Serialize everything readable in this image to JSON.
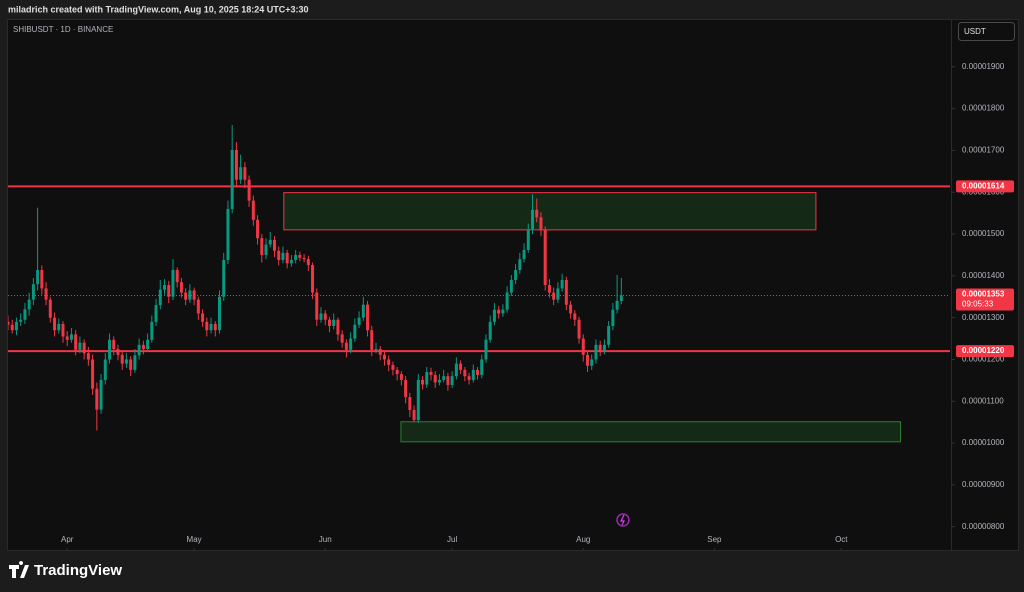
{
  "chart_data": {
    "type": "candlestick",
    "caption": "miladrich created with TradingView.com, Aug 10, 2025 18:24 UTC+3:30",
    "title": "SHIBUSDT · 1D · BINANCE",
    "currency": "USDT",
    "brand": "TradingView",
    "up_color": "#089981",
    "down_color": "#f23645",
    "grid": false,
    "xlim": [
      0,
      222.7
    ],
    "ylim": [
      7.49e-06,
      2.012e-05
    ],
    "xticks": [
      {
        "value": 14,
        "label": "Apr"
      },
      {
        "value": 44,
        "label": "May"
      },
      {
        "value": 75,
        "label": "Jun"
      },
      {
        "value": 105,
        "label": "Jul"
      },
      {
        "value": 136,
        "label": "Aug"
      },
      {
        "value": 167,
        "label": "Sep"
      },
      {
        "value": 197,
        "label": "Oct"
      }
    ],
    "yticks": [
      {
        "value": 8e-06,
        "label": "0.00000800"
      },
      {
        "value": 9e-06,
        "label": "0.00000900"
      },
      {
        "value": 1e-05,
        "label": "0.00001000"
      },
      {
        "value": 1.1e-05,
        "label": "0.00001100"
      },
      {
        "value": 1.2e-05,
        "label": "0.00001200"
      },
      {
        "value": 1.3e-05,
        "label": "0.00001300"
      },
      {
        "value": 1.4e-05,
        "label": "0.00001400"
      },
      {
        "value": 1.5e-05,
        "label": "0.00001500"
      },
      {
        "value": 1.6e-05,
        "label": "0.00001600"
      },
      {
        "value": 1.7e-05,
        "label": "0.00001700"
      },
      {
        "value": 1.8e-05,
        "label": "0.00001800"
      },
      {
        "value": 1.9e-05,
        "label": "0.00001900"
      }
    ],
    "levels": [
      {
        "value": 1.614e-05,
        "label": "0.00001614",
        "color": "#f23645"
      },
      {
        "value": 1.22e-05,
        "label": "0.00001220",
        "color": "#f23645"
      }
    ],
    "last_price": {
      "value": 1.353e-05,
      "label": "0.00001353",
      "countdown": "09:05:33",
      "color": "#f23645"
    },
    "zones": [
      {
        "x": [
          65.2,
          191
        ],
        "y": [
          1.51e-05,
          1.599e-05
        ],
        "fill": "#142a17",
        "border": "#f23645"
      },
      {
        "x": [
          92.9,
          211
        ],
        "y": [
          1.003e-05,
          1.051e-05
        ],
        "fill": "#142a17",
        "border": "#2e7d32"
      }
    ],
    "ohlc": [
      [
        1.29e-05,
        1.305e-05,
        1.27e-05,
        1.283e-05
      ],
      [
        1.283e-05,
        1.295e-05,
        1.262e-05,
        1.27e-05
      ],
      [
        1.27e-05,
        1.3e-05,
        1.258e-05,
        1.29e-05
      ],
      [
        1.29e-05,
        1.31e-05,
        1.28e-05,
        1.295e-05
      ],
      [
        1.295e-05,
        1.335e-05,
        1.285e-05,
        1.32e-05
      ],
      [
        1.32e-05,
        1.36e-05,
        1.305e-05,
        1.343e-05
      ],
      [
        1.343e-05,
        1.395e-05,
        1.33e-05,
        1.38e-05
      ],
      [
        1.38e-05,
        1.563e-05,
        1.365e-05,
        1.414e-05
      ],
      [
        1.414e-05,
        1.425e-05,
        1.355e-05,
        1.37e-05
      ],
      [
        1.37e-05,
        1.385e-05,
        1.33e-05,
        1.343e-05
      ],
      [
        1.343e-05,
        1.35e-05,
        1.288e-05,
        1.3e-05
      ],
      [
        1.3e-05,
        1.312e-05,
        1.255e-05,
        1.27e-05
      ],
      [
        1.27e-05,
        1.298e-05,
        1.262e-05,
        1.285e-05
      ],
      [
        1.285e-05,
        1.292e-05,
        1.24e-05,
        1.255e-05
      ],
      [
        1.255e-05,
        1.268e-05,
        1.232e-05,
        1.247e-05
      ],
      [
        1.247e-05,
        1.275e-05,
        1.24e-05,
        1.26e-05
      ],
      [
        1.26e-05,
        1.27e-05,
        1.21e-05,
        1.223e-05
      ],
      [
        1.223e-05,
        1.255e-05,
        1.215e-05,
        1.24e-05
      ],
      [
        1.24e-05,
        1.248e-05,
        1.2e-05,
        1.215e-05
      ],
      [
        1.215e-05,
        1.23e-05,
        1.185e-05,
        1.2e-05
      ],
      [
        1.2e-05,
        1.212e-05,
        1.115e-05,
        1.13e-05
      ],
      [
        1.13e-05,
        1.145e-05,
        1.03e-05,
        1.08e-05
      ],
      [
        1.08e-05,
        1.165e-05,
        1.07e-05,
        1.151e-05
      ],
      [
        1.151e-05,
        1.215e-05,
        1.14e-05,
        1.2e-05
      ],
      [
        1.2e-05,
        1.262e-05,
        1.19e-05,
        1.247e-05
      ],
      [
        1.247e-05,
        1.255e-05,
        1.21e-05,
        1.225e-05
      ],
      [
        1.225e-05,
        1.235e-05,
        1.198e-05,
        1.211e-05
      ],
      [
        1.211e-05,
        1.22e-05,
        1.175e-05,
        1.19e-05
      ],
      [
        1.19e-05,
        1.215e-05,
        1.18e-05,
        1.2e-05
      ],
      [
        1.2e-05,
        1.208e-05,
        1.16e-05,
        1.175e-05
      ],
      [
        1.175e-05,
        1.225e-05,
        1.168e-05,
        1.21e-05
      ],
      [
        1.21e-05,
        1.25e-05,
        1.2e-05,
        1.235e-05
      ],
      [
        1.235e-05,
        1.245e-05,
        1.212e-05,
        1.225e-05
      ],
      [
        1.225e-05,
        1.262e-05,
        1.218e-05,
        1.247e-05
      ],
      [
        1.247e-05,
        1.305e-05,
        1.24e-05,
        1.29e-05
      ],
      [
        1.29e-05,
        1.345e-05,
        1.28e-05,
        1.33e-05
      ],
      [
        1.33e-05,
        1.39e-05,
        1.32e-05,
        1.367e-05
      ],
      [
        1.367e-05,
        1.392e-05,
        1.355e-05,
        1.378e-05
      ],
      [
        1.378e-05,
        1.388e-05,
        1.335e-05,
        1.35e-05
      ],
      [
        1.35e-05,
        1.44e-05,
        1.342e-05,
        1.414e-05
      ],
      [
        1.414e-05,
        1.42e-05,
        1.372e-05,
        1.385e-05
      ],
      [
        1.385e-05,
        1.395e-05,
        1.348e-05,
        1.36e-05
      ],
      [
        1.36e-05,
        1.37e-05,
        1.33e-05,
        1.343e-05
      ],
      [
        1.343e-05,
        1.38e-05,
        1.335e-05,
        1.365e-05
      ],
      [
        1.365e-05,
        1.372e-05,
        1.33e-05,
        1.343e-05
      ],
      [
        1.343e-05,
        1.35e-05,
        1.295e-05,
        1.31e-05
      ],
      [
        1.31e-05,
        1.32e-05,
        1.278e-05,
        1.29e-05
      ],
      [
        1.29e-05,
        1.3e-05,
        1.255e-05,
        1.27e-05
      ],
      [
        1.27e-05,
        1.3e-05,
        1.262e-05,
        1.285e-05
      ],
      [
        1.285e-05,
        1.292e-05,
        1.255e-05,
        1.27e-05
      ],
      [
        1.27e-05,
        1.365e-05,
        1.262e-05,
        1.35e-05
      ],
      [
        1.35e-05,
        1.455e-05,
        1.34e-05,
        1.438e-05
      ],
      [
        1.438e-05,
        1.58e-05,
        1.428e-05,
        1.56e-05
      ],
      [
        1.56e-05,
        1.761e-05,
        1.55e-05,
        1.701e-05
      ],
      [
        1.701e-05,
        1.72e-05,
        1.615e-05,
        1.63e-05
      ],
      [
        1.63e-05,
        1.69e-05,
        1.62e-05,
        1.66e-05
      ],
      [
        1.66e-05,
        1.672e-05,
        1.61e-05,
        1.63e-05
      ],
      [
        1.63e-05,
        1.64e-05,
        1.565e-05,
        1.58e-05
      ],
      [
        1.58e-05,
        1.592e-05,
        1.52e-05,
        1.534e-05
      ],
      [
        1.534e-05,
        1.545e-05,
        1.475e-05,
        1.49e-05
      ],
      [
        1.49e-05,
        1.5e-05,
        1.432e-05,
        1.45e-05
      ],
      [
        1.45e-05,
        1.49e-05,
        1.44e-05,
        1.475e-05
      ],
      [
        1.475e-05,
        1.505e-05,
        1.468e-05,
        1.486e-05
      ],
      [
        1.486e-05,
        1.495e-05,
        1.445e-05,
        1.46e-05
      ],
      [
        1.46e-05,
        1.47e-05,
        1.425e-05,
        1.438e-05
      ],
      [
        1.438e-05,
        1.47e-05,
        1.43e-05,
        1.455e-05
      ],
      [
        1.455e-05,
        1.462e-05,
        1.418e-05,
        1.43e-05
      ],
      [
        1.43e-05,
        1.45e-05,
        1.422e-05,
        1.438e-05
      ],
      [
        1.438e-05,
        1.462e-05,
        1.43e-05,
        1.45e-05
      ],
      [
        1.45e-05,
        1.458e-05,
        1.435e-05,
        1.443e-05
      ],
      [
        1.443e-05,
        1.452e-05,
        1.432e-05,
        1.44e-05
      ],
      [
        1.44e-05,
        1.448e-05,
        1.412e-05,
        1.426e-05
      ],
      [
        1.426e-05,
        1.432e-05,
        1.345e-05,
        1.36e-05
      ],
      [
        1.36e-05,
        1.37e-05,
        1.28e-05,
        1.295e-05
      ],
      [
        1.295e-05,
        1.325e-05,
        1.288e-05,
        1.31e-05
      ],
      [
        1.31e-05,
        1.318e-05,
        1.282e-05,
        1.295e-05
      ],
      [
        1.295e-05,
        1.302e-05,
        1.265e-05,
        1.28e-05
      ],
      [
        1.28e-05,
        1.31e-05,
        1.272e-05,
        1.295e-05
      ],
      [
        1.295e-05,
        1.3e-05,
        1.245e-05,
        1.26e-05
      ],
      [
        1.26e-05,
        1.27e-05,
        1.228e-05,
        1.24e-05
      ],
      [
        1.24e-05,
        1.248e-05,
        1.205e-05,
        1.223e-05
      ],
      [
        1.223e-05,
        1.265e-05,
        1.215e-05,
        1.25e-05
      ],
      [
        1.25e-05,
        1.298e-05,
        1.242e-05,
        1.283e-05
      ],
      [
        1.283e-05,
        1.315e-05,
        1.275e-05,
        1.3e-05
      ],
      [
        1.3e-05,
        1.35e-05,
        1.292e-05,
        1.331e-05
      ],
      [
        1.331e-05,
        1.34e-05,
        1.255e-05,
        1.27e-05
      ],
      [
        1.27e-05,
        1.28e-05,
        1.208e-05,
        1.223e-05
      ],
      [
        1.223e-05,
        1.24e-05,
        1.215e-05,
        1.225e-05
      ],
      [
        1.225e-05,
        1.232e-05,
        1.198e-05,
        1.211e-05
      ],
      [
        1.211e-05,
        1.218e-05,
        1.185e-05,
        1.2e-05
      ],
      [
        1.2e-05,
        1.21e-05,
        1.172e-05,
        1.187e-05
      ],
      [
        1.187e-05,
        1.195e-05,
        1.162e-05,
        1.175e-05
      ],
      [
        1.175e-05,
        1.182e-05,
        1.15e-05,
        1.165e-05
      ],
      [
        1.165e-05,
        1.172e-05,
        1.138e-05,
        1.151e-05
      ],
      [
        1.151e-05,
        1.16e-05,
        1.095e-05,
        1.11e-05
      ],
      [
        1.11e-05,
        1.12e-05,
        1.062e-05,
        1.079e-05
      ],
      [
        1.079e-05,
        1.09e-05,
        1.05e-05,
        1.055e-05
      ],
      [
        1.055e-05,
        1.165e-05,
        1.048e-05,
        1.151e-05
      ],
      [
        1.151e-05,
        1.16e-05,
        1.128e-05,
        1.14e-05
      ],
      [
        1.14e-05,
        1.182e-05,
        1.132e-05,
        1.17e-05
      ],
      [
        1.17e-05,
        1.18e-05,
        1.15e-05,
        1.163e-05
      ],
      [
        1.163e-05,
        1.172e-05,
        1.132e-05,
        1.145e-05
      ],
      [
        1.145e-05,
        1.165e-05,
        1.138e-05,
        1.151e-05
      ],
      [
        1.151e-05,
        1.175e-05,
        1.145e-05,
        1.16e-05
      ],
      [
        1.16e-05,
        1.168e-05,
        1.125e-05,
        1.139e-05
      ],
      [
        1.139e-05,
        1.172e-05,
        1.132e-05,
        1.16e-05
      ],
      [
        1.16e-05,
        1.205e-05,
        1.152e-05,
        1.19e-05
      ],
      [
        1.19e-05,
        1.198e-05,
        1.165e-05,
        1.175e-05
      ],
      [
        1.175e-05,
        1.182e-05,
        1.148e-05,
        1.16e-05
      ],
      [
        1.16e-05,
        1.168e-05,
        1.14e-05,
        1.151e-05
      ],
      [
        1.151e-05,
        1.188e-05,
        1.145e-05,
        1.175e-05
      ],
      [
        1.175e-05,
        1.182e-05,
        1.152e-05,
        1.163e-05
      ],
      [
        1.163e-05,
        1.212e-05,
        1.155e-05,
        1.2e-05
      ],
      [
        1.2e-05,
        1.26e-05,
        1.192e-05,
        1.247e-05
      ],
      [
        1.247e-05,
        1.305e-05,
        1.24e-05,
        1.29e-05
      ],
      [
        1.29e-05,
        1.335e-05,
        1.282e-05,
        1.319e-05
      ],
      [
        1.319e-05,
        1.328e-05,
        1.298e-05,
        1.31e-05
      ],
      [
        1.31e-05,
        1.332e-05,
        1.302e-05,
        1.319e-05
      ],
      [
        1.319e-05,
        1.375e-05,
        1.312e-05,
        1.36e-05
      ],
      [
        1.36e-05,
        1.402e-05,
        1.352e-05,
        1.39e-05
      ],
      [
        1.39e-05,
        1.428e-05,
        1.38e-05,
        1.414e-05
      ],
      [
        1.414e-05,
        1.455e-05,
        1.405e-05,
        1.44e-05
      ],
      [
        1.44e-05,
        1.478e-05,
        1.432e-05,
        1.462e-05
      ],
      [
        1.462e-05,
        1.525e-05,
        1.455e-05,
        1.51e-05
      ],
      [
        1.51e-05,
        1.595e-05,
        1.5e-05,
        1.558e-05
      ],
      [
        1.558e-05,
        1.585e-05,
        1.528e-05,
        1.54e-05
      ],
      [
        1.54e-05,
        1.552e-05,
        1.495e-05,
        1.51e-05
      ],
      [
        1.51e-05,
        1.518e-05,
        1.365e-05,
        1.378e-05
      ],
      [
        1.378e-05,
        1.392e-05,
        1.348e-05,
        1.36e-05
      ],
      [
        1.36e-05,
        1.372e-05,
        1.33e-05,
        1.343e-05
      ],
      [
        1.343e-05,
        1.385e-05,
        1.335e-05,
        1.37e-05
      ],
      [
        1.37e-05,
        1.405e-05,
        1.362e-05,
        1.39e-05
      ],
      [
        1.39e-05,
        1.398e-05,
        1.318e-05,
        1.331e-05
      ],
      [
        1.331e-05,
        1.34e-05,
        1.298e-05,
        1.31e-05
      ],
      [
        1.31e-05,
        1.318e-05,
        1.28e-05,
        1.295e-05
      ],
      [
        1.295e-05,
        1.302e-05,
        1.238e-05,
        1.25e-05
      ],
      [
        1.25e-05,
        1.26e-05,
        1.195e-05,
        1.211e-05
      ],
      [
        1.211e-05,
        1.22e-05,
        1.17e-05,
        1.185e-05
      ],
      [
        1.185e-05,
        1.212e-05,
        1.175e-05,
        1.2e-05
      ],
      [
        1.2e-05,
        1.248e-05,
        1.19e-05,
        1.235e-05
      ],
      [
        1.235e-05,
        1.245e-05,
        1.208e-05,
        1.22e-05
      ],
      [
        1.22e-05,
        1.248e-05,
        1.212e-05,
        1.235e-05
      ],
      [
        1.235e-05,
        1.292e-05,
        1.228e-05,
        1.28e-05
      ],
      [
        1.28e-05,
        1.335e-05,
        1.27e-05,
        1.319e-05
      ],
      [
        1.319e-05,
        1.402e-05,
        1.31e-05,
        1.34e-05
      ],
      [
        1.34e-05,
        1.395e-05,
        1.332e-05,
        1.353e-05
      ]
    ]
  }
}
